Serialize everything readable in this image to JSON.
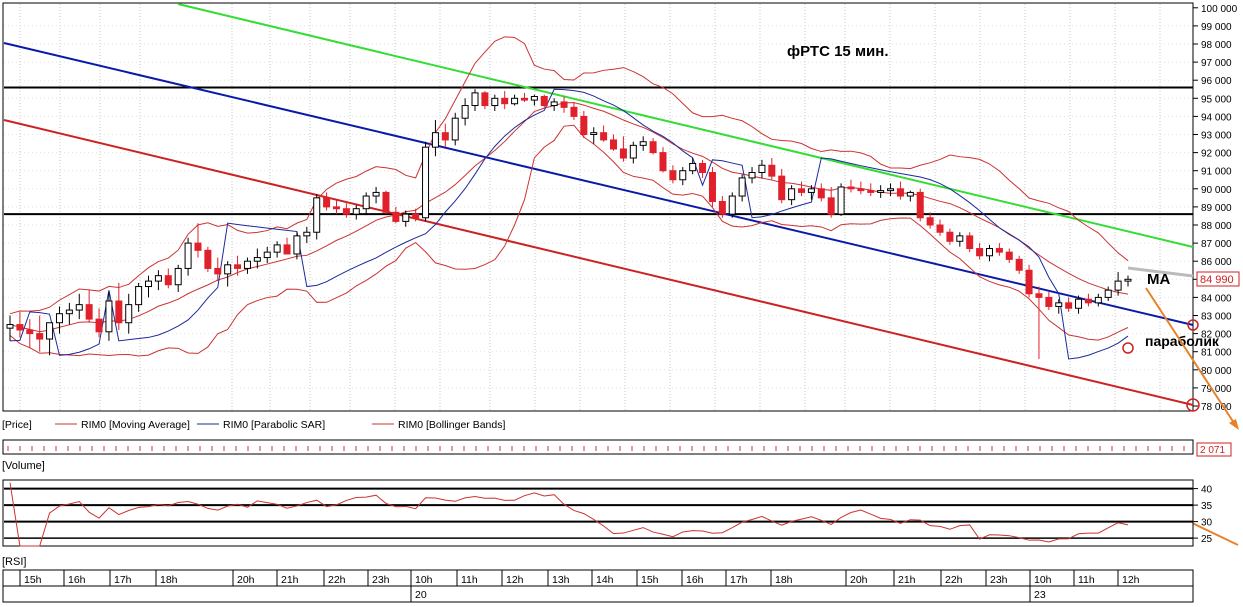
{
  "title": "фРТС   15 мин.",
  "price_axis": {
    "min": 78000,
    "max": 100000,
    "step": 1000,
    "labels": [
      "78 000",
      "79 000",
      "80 000",
      "81 000",
      "82 000",
      "83 000",
      "84 000",
      "85 000",
      "86 000",
      "87 000",
      "88 000",
      "89 000",
      "90 000",
      "91 000",
      "92 000",
      "93 000",
      "94 000",
      "95 000",
      "96 000",
      "97 000",
      "98 000",
      "99 000",
      "100 000"
    ],
    "last_price_label": "84 990"
  },
  "legend": [
    {
      "label": "[Price]",
      "color": "#000000"
    },
    {
      "label": "RIM0 [Moving Average]",
      "color": "#c0392b"
    },
    {
      "label": "RIM0 [Parabolic SAR]",
      "color": "#1f2a8c"
    },
    {
      "label": "RIM0 [Bollinger Bands]",
      "color": "#c0392b"
    }
  ],
  "volume": {
    "label": "[Volume]",
    "last_value": "2 071"
  },
  "rsi": {
    "label": "[RSI]",
    "axis_labels": [
      "40",
      "35",
      "30",
      "25"
    ]
  },
  "annotations": {
    "ma": "МА",
    "parabolic": "параболик"
  },
  "time_axis": {
    "hours": [
      "15h",
      "16h",
      "17h",
      "18h",
      "20h",
      "21h",
      "22h",
      "23h",
      "10h",
      "11h",
      "12h",
      "13h",
      "14h",
      "15h",
      "16h",
      "17h",
      "18h",
      "20h",
      "21h",
      "22h",
      "23h",
      "10h",
      "11h",
      "12h"
    ],
    "dates": [
      "20",
      "23"
    ]
  },
  "colors": {
    "up": "#ffffff",
    "down": "#e0202a",
    "green_line": "#33dd33",
    "blue_line": "#0a1aa8",
    "red_line": "#cc2222",
    "orange": "#e8812a"
  },
  "chart_data": {
    "type": "candlestick",
    "instrument": "RIM0",
    "timeframe": "15 мин.",
    "candles": [
      {
        "o": 82.3,
        "h": 83.0,
        "l": 81.6,
        "c": 82.5
      },
      {
        "o": 82.5,
        "h": 83.2,
        "l": 81.8,
        "c": 82.2
      },
      {
        "o": 82.2,
        "h": 82.8,
        "l": 81.2,
        "c": 82.0
      },
      {
        "o": 82.0,
        "h": 83.0,
        "l": 81.0,
        "c": 81.7
      },
      {
        "o": 81.7,
        "h": 82.6,
        "l": 80.8,
        "c": 82.6
      },
      {
        "o": 82.6,
        "h": 83.5,
        "l": 82.0,
        "c": 83.1
      },
      {
        "o": 83.1,
        "h": 83.7,
        "l": 82.5,
        "c": 83.3
      },
      {
        "o": 83.3,
        "h": 84.2,
        "l": 82.8,
        "c": 83.6
      },
      {
        "o": 83.6,
        "h": 84.4,
        "l": 82.6,
        "c": 82.8
      },
      {
        "o": 82.8,
        "h": 83.4,
        "l": 81.8,
        "c": 82.1
      },
      {
        "o": 82.1,
        "h": 84.3,
        "l": 81.6,
        "c": 83.8
      },
      {
        "o": 83.8,
        "h": 84.8,
        "l": 82.2,
        "c": 82.6
      },
      {
        "o": 82.6,
        "h": 84.2,
        "l": 82.0,
        "c": 83.6
      },
      {
        "o": 83.6,
        "h": 84.8,
        "l": 83.2,
        "c": 84.6
      },
      {
        "o": 84.6,
        "h": 85.2,
        "l": 84.0,
        "c": 84.9
      },
      {
        "o": 84.9,
        "h": 85.5,
        "l": 84.4,
        "c": 85.2
      },
      {
        "o": 85.2,
        "h": 85.6,
        "l": 84.5,
        "c": 84.7
      },
      {
        "o": 84.7,
        "h": 85.8,
        "l": 84.3,
        "c": 85.6
      },
      {
        "o": 85.6,
        "h": 87.3,
        "l": 85.2,
        "c": 87.0
      },
      {
        "o": 87.0,
        "h": 88.1,
        "l": 86.2,
        "c": 86.6
      },
      {
        "o": 86.6,
        "h": 86.8,
        "l": 85.4,
        "c": 85.6
      },
      {
        "o": 85.6,
        "h": 86.2,
        "l": 84.9,
        "c": 85.3
      },
      {
        "o": 85.3,
        "h": 86.0,
        "l": 84.6,
        "c": 85.8
      },
      {
        "o": 85.8,
        "h": 86.3,
        "l": 85.2,
        "c": 85.6
      },
      {
        "o": 85.6,
        "h": 86.2,
        "l": 85.3,
        "c": 86.0
      },
      {
        "o": 86.0,
        "h": 86.7,
        "l": 85.6,
        "c": 86.2
      },
      {
        "o": 86.2,
        "h": 86.8,
        "l": 85.9,
        "c": 86.5
      },
      {
        "o": 86.5,
        "h": 87.1,
        "l": 86.2,
        "c": 86.9
      },
      {
        "o": 86.9,
        "h": 87.3,
        "l": 86.5,
        "c": 86.4
      },
      {
        "o": 86.4,
        "h": 87.6,
        "l": 86.1,
        "c": 87.4
      },
      {
        "o": 87.4,
        "h": 87.9,
        "l": 87.0,
        "c": 87.6
      },
      {
        "o": 87.6,
        "h": 89.7,
        "l": 87.2,
        "c": 89.5
      },
      {
        "o": 89.5,
        "h": 89.8,
        "l": 88.8,
        "c": 89.0
      },
      {
        "o": 89.0,
        "h": 89.4,
        "l": 88.6,
        "c": 88.9
      },
      {
        "o": 88.9,
        "h": 89.2,
        "l": 88.4,
        "c": 88.6
      },
      {
        "o": 88.6,
        "h": 89.1,
        "l": 88.3,
        "c": 88.9
      },
      {
        "o": 88.9,
        "h": 89.8,
        "l": 88.6,
        "c": 89.6
      },
      {
        "o": 89.6,
        "h": 90.1,
        "l": 89.2,
        "c": 89.8
      },
      {
        "o": 89.8,
        "h": 89.9,
        "l": 88.6,
        "c": 88.7
      },
      {
        "o": 88.7,
        "h": 89.0,
        "l": 88.1,
        "c": 88.2
      },
      {
        "o": 88.2,
        "h": 88.8,
        "l": 87.9,
        "c": 88.6
      },
      {
        "o": 88.6,
        "h": 88.9,
        "l": 88.2,
        "c": 88.4
      },
      {
        "o": 88.4,
        "h": 92.6,
        "l": 88.2,
        "c": 92.3
      },
      {
        "o": 92.3,
        "h": 93.8,
        "l": 91.8,
        "c": 93.1
      },
      {
        "o": 93.1,
        "h": 93.6,
        "l": 92.3,
        "c": 92.7
      },
      {
        "o": 92.7,
        "h": 94.2,
        "l": 92.4,
        "c": 93.9
      },
      {
        "o": 93.9,
        "h": 95.0,
        "l": 93.5,
        "c": 94.6
      },
      {
        "o": 94.6,
        "h": 95.5,
        "l": 94.3,
        "c": 95.3
      },
      {
        "o": 95.3,
        "h": 95.4,
        "l": 94.4,
        "c": 94.6
      },
      {
        "o": 94.6,
        "h": 95.2,
        "l": 94.3,
        "c": 95.0
      },
      {
        "o": 95.0,
        "h": 95.4,
        "l": 94.4,
        "c": 94.7
      },
      {
        "o": 94.7,
        "h": 95.2,
        "l": 94.6,
        "c": 95.0
      },
      {
        "o": 95.0,
        "h": 95.3,
        "l": 94.8,
        "c": 94.9
      },
      {
        "o": 94.9,
        "h": 95.2,
        "l": 94.6,
        "c": 95.1
      },
      {
        "o": 95.1,
        "h": 95.2,
        "l": 94.5,
        "c": 94.6
      },
      {
        "o": 94.6,
        "h": 95.0,
        "l": 94.3,
        "c": 94.8
      },
      {
        "o": 94.8,
        "h": 95.1,
        "l": 94.2,
        "c": 94.5
      },
      {
        "o": 94.5,
        "h": 94.8,
        "l": 93.8,
        "c": 94.0
      },
      {
        "o": 94.0,
        "h": 94.3,
        "l": 92.8,
        "c": 93.0
      },
      {
        "o": 93.0,
        "h": 93.4,
        "l": 92.5,
        "c": 93.1
      },
      {
        "o": 93.1,
        "h": 93.5,
        "l": 92.6,
        "c": 92.7
      },
      {
        "o": 92.7,
        "h": 93.0,
        "l": 92.1,
        "c": 92.2
      },
      {
        "o": 92.2,
        "h": 92.9,
        "l": 91.5,
        "c": 91.7
      },
      {
        "o": 91.7,
        "h": 92.6,
        "l": 91.4,
        "c": 92.4
      },
      {
        "o": 92.4,
        "h": 92.9,
        "l": 92.1,
        "c": 92.6
      },
      {
        "o": 92.6,
        "h": 92.8,
        "l": 91.9,
        "c": 92.0
      },
      {
        "o": 92.0,
        "h": 92.3,
        "l": 90.9,
        "c": 91.0
      },
      {
        "o": 91.0,
        "h": 91.3,
        "l": 90.3,
        "c": 90.5
      },
      {
        "o": 90.5,
        "h": 91.2,
        "l": 90.2,
        "c": 91.0
      },
      {
        "o": 91.0,
        "h": 91.7,
        "l": 90.8,
        "c": 91.4
      },
      {
        "o": 91.4,
        "h": 91.6,
        "l": 90.6,
        "c": 90.9
      },
      {
        "o": 90.9,
        "h": 91.2,
        "l": 89.0,
        "c": 89.3
      },
      {
        "o": 89.3,
        "h": 89.6,
        "l": 88.4,
        "c": 88.6
      },
      {
        "o": 88.6,
        "h": 89.8,
        "l": 88.4,
        "c": 89.6
      },
      {
        "o": 89.6,
        "h": 90.8,
        "l": 89.3,
        "c": 90.6
      },
      {
        "o": 90.6,
        "h": 91.2,
        "l": 90.3,
        "c": 90.9
      },
      {
        "o": 90.9,
        "h": 91.6,
        "l": 90.6,
        "c": 91.3
      },
      {
        "o": 91.3,
        "h": 91.7,
        "l": 90.5,
        "c": 90.7
      },
      {
        "o": 90.7,
        "h": 91.1,
        "l": 89.2,
        "c": 89.4
      },
      {
        "o": 89.4,
        "h": 90.2,
        "l": 89.1,
        "c": 90.0
      },
      {
        "o": 90.0,
        "h": 90.4,
        "l": 89.6,
        "c": 89.8
      },
      {
        "o": 89.8,
        "h": 90.2,
        "l": 89.4,
        "c": 90.0
      },
      {
        "o": 90.0,
        "h": 90.3,
        "l": 89.3,
        "c": 89.5
      },
      {
        "o": 89.5,
        "h": 90.1,
        "l": 88.4,
        "c": 88.6
      },
      {
        "o": 88.6,
        "h": 90.3,
        "l": 88.5,
        "c": 90.1
      },
      {
        "o": 90.1,
        "h": 90.5,
        "l": 89.8,
        "c": 90.0
      },
      {
        "o": 90.0,
        "h": 90.4,
        "l": 89.7,
        "c": 89.9
      },
      {
        "o": 89.9,
        "h": 90.3,
        "l": 89.6,
        "c": 89.8
      },
      {
        "o": 89.8,
        "h": 90.2,
        "l": 89.5,
        "c": 89.9
      },
      {
        "o": 89.9,
        "h": 90.3,
        "l": 89.6,
        "c": 90.0
      },
      {
        "o": 90.0,
        "h": 90.4,
        "l": 89.4,
        "c": 89.6
      },
      {
        "o": 89.6,
        "h": 89.9,
        "l": 89.3,
        "c": 89.8
      },
      {
        "o": 89.8,
        "h": 90.0,
        "l": 88.2,
        "c": 88.4
      },
      {
        "o": 88.4,
        "h": 88.7,
        "l": 87.8,
        "c": 88.0
      },
      {
        "o": 88.0,
        "h": 88.3,
        "l": 87.4,
        "c": 87.6
      },
      {
        "o": 87.6,
        "h": 87.8,
        "l": 86.9,
        "c": 87.1
      },
      {
        "o": 87.1,
        "h": 87.6,
        "l": 86.8,
        "c": 87.4
      },
      {
        "o": 87.4,
        "h": 87.6,
        "l": 86.5,
        "c": 86.7
      },
      {
        "o": 86.7,
        "h": 87.0,
        "l": 86.1,
        "c": 86.3
      },
      {
        "o": 86.3,
        "h": 86.9,
        "l": 86.0,
        "c": 86.7
      },
      {
        "o": 86.7,
        "h": 87.0,
        "l": 86.3,
        "c": 86.5
      },
      {
        "o": 86.5,
        "h": 86.7,
        "l": 85.9,
        "c": 86.1
      },
      {
        "o": 86.1,
        "h": 86.3,
        "l": 85.3,
        "c": 85.5
      },
      {
        "o": 85.5,
        "h": 85.8,
        "l": 84.0,
        "c": 84.2
      },
      {
        "o": 84.2,
        "h": 84.6,
        "l": 80.6,
        "c": 84.0
      },
      {
        "o": 84.0,
        "h": 84.3,
        "l": 83.3,
        "c": 83.5
      },
      {
        "o": 83.5,
        "h": 83.9,
        "l": 83.1,
        "c": 83.7
      },
      {
        "o": 83.7,
        "h": 84.0,
        "l": 83.2,
        "c": 83.4
      },
      {
        "o": 83.4,
        "h": 84.1,
        "l": 83.1,
        "c": 83.9
      },
      {
        "o": 83.9,
        "h": 84.2,
        "l": 83.5,
        "c": 83.7
      },
      {
        "o": 83.7,
        "h": 84.2,
        "l": 83.5,
        "c": 84.0
      },
      {
        "o": 84.0,
        "h": 84.6,
        "l": 83.8,
        "c": 84.4
      },
      {
        "o": 84.4,
        "h": 85.4,
        "l": 84.1,
        "c": 84.9
      },
      {
        "o": 84.9,
        "h": 85.2,
        "l": 84.6,
        "c": 85.0
      }
    ],
    "support_resistance": {
      "horizontal": [
        95600,
        88600
      ]
    },
    "ylim": [
      78000,
      100000
    ],
    "rsi_ylim": [
      22,
      42
    ],
    "rsi_levels": [
      40,
      35,
      30,
      25
    ]
  }
}
